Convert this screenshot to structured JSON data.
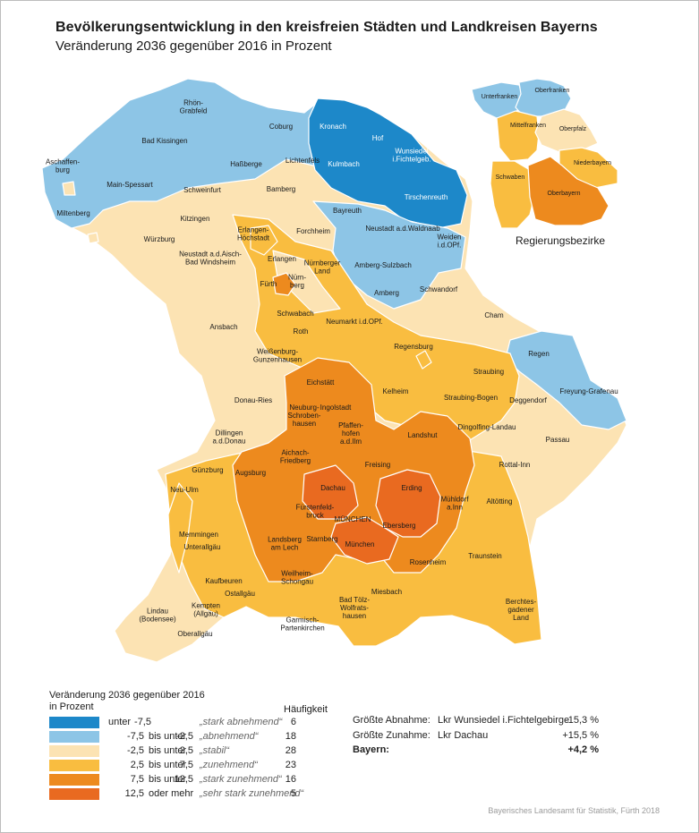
{
  "header": {
    "title": "Bevölkerungsentwicklung in den kreisfreien Städten und Landkreisen Bayerns",
    "subtitle": "Veränderung 2036 gegenüber 2016 in Prozent"
  },
  "colors": {
    "stark_abnehmend": "#1d88c9",
    "abnehmend": "#8dc5e6",
    "stabil": "#fce3b3",
    "zunehmend": "#f9bd40",
    "stark_zunehmend": "#ed8a1e",
    "sehr_stark_zunehmend": "#e96a20",
    "border": "#ffffff"
  },
  "map": {
    "labels": [
      {
        "name": "rhoen-grabfeld",
        "text": "Rhön-\nGrabfeld",
        "cls": "abnehmend"
      },
      {
        "name": "coburg",
        "text": "Coburg",
        "cls": "abnehmend"
      },
      {
        "name": "kronach",
        "text": "Kronach",
        "cls": "stark_abnehmend"
      },
      {
        "name": "hof",
        "text": "Hof",
        "cls": "stark_abnehmend"
      },
      {
        "name": "bad-kissingen",
        "text": "Bad Kissingen",
        "cls": "abnehmend"
      },
      {
        "name": "hassberge",
        "text": "Haßberge",
        "cls": "abnehmend"
      },
      {
        "name": "lichtenfels",
        "text": "Lichtenfels",
        "cls": "abnehmend"
      },
      {
        "name": "kulmbach",
        "text": "Kulmbach",
        "cls": "stark_abnehmend"
      },
      {
        "name": "wunsiedel",
        "text": "Wunsiedel\ni.Fichtelgeb.",
        "cls": "stark_abnehmend"
      },
      {
        "name": "aschaffenburg",
        "text": "Aschaffen-\nburg",
        "cls": "abnehmend"
      },
      {
        "name": "main-spessart",
        "text": "Main-Spessart",
        "cls": "abnehmend"
      },
      {
        "name": "schweinfurt",
        "text": "Schweinfurt",
        "cls": "stabil"
      },
      {
        "name": "bamberg",
        "text": "Bamberg",
        "cls": "stabil"
      },
      {
        "name": "bayreuth",
        "text": "Bayreuth",
        "cls": "abnehmend"
      },
      {
        "name": "tirschenreuth",
        "text": "Tirschenreuth",
        "cls": "stark_abnehmend"
      },
      {
        "name": "miltenberg",
        "text": "Miltenberg",
        "cls": "abnehmend"
      },
      {
        "name": "kitzingen",
        "text": "Kitzingen",
        "cls": "stabil"
      },
      {
        "name": "erlangen-hoechstadt",
        "text": "Erlangen-\nHöchstadt",
        "cls": "zunehmend"
      },
      {
        "name": "forchheim",
        "text": "Forchheim",
        "cls": "stabil"
      },
      {
        "name": "neustadt-waldnaab",
        "text": "Neustadt a.d.Waldnaab",
        "cls": "abnehmend"
      },
      {
        "name": "wuerzburg",
        "text": "Würzburg",
        "cls": "stabil"
      },
      {
        "name": "weiden",
        "text": "Weiden\ni.d.OPf.",
        "cls": "abnehmend"
      },
      {
        "name": "neustadt-aisch",
        "text": "Neustadt a.d.Aisch-\nBad Windsheim",
        "cls": "stabil"
      },
      {
        "name": "erlangen",
        "text": "Erlangen",
        "cls": "zunehmend"
      },
      {
        "name": "nuernberger-land",
        "text": "Nürnberger\nLand",
        "cls": "zunehmend"
      },
      {
        "name": "amberg-sulzbach",
        "text": "Amberg-Sulzbach",
        "cls": "abnehmend"
      },
      {
        "name": "fuerth",
        "text": "Fürth",
        "cls": "zunehmend"
      },
      {
        "name": "nuernberg",
        "text": "Nürn-\nberg",
        "cls": "stark_zunehmend"
      },
      {
        "name": "amberg",
        "text": "Amberg",
        "cls": "abnehmend"
      },
      {
        "name": "schwandorf",
        "text": "Schwandorf",
        "cls": "stabil"
      },
      {
        "name": "schwabach",
        "text": "Schwabach",
        "cls": "zunehmend"
      },
      {
        "name": "cham",
        "text": "Cham",
        "cls": "stabil"
      },
      {
        "name": "ansbach",
        "text": "Ansbach",
        "cls": "stabil"
      },
      {
        "name": "neumarkt",
        "text": "Neumarkt i.d.OPf.",
        "cls": "zunehmend"
      },
      {
        "name": "roth",
        "text": "Roth",
        "cls": "stabil"
      },
      {
        "name": "regensburg",
        "text": "Regensburg",
        "cls": "zunehmend"
      },
      {
        "name": "regen",
        "text": "Regen",
        "cls": "abnehmend"
      },
      {
        "name": "weissenburg",
        "text": "Weißenburg-\nGunzenhausen",
        "cls": "stabil"
      },
      {
        "name": "straubing",
        "text": "Straubing",
        "cls": "zunehmend"
      },
      {
        "name": "eichstaett",
        "text": "Eichstätt",
        "cls": "stark_zunehmend"
      },
      {
        "name": "kelheim",
        "text": "Kelheim",
        "cls": "zunehmend"
      },
      {
        "name": "freyung-grafenau",
        "text": "Freyung-Grafenau",
        "cls": "abnehmend"
      },
      {
        "name": "straubing-bogen",
        "text": "Straubing-Bogen",
        "cls": "zunehmend"
      },
      {
        "name": "donau-ries",
        "text": "Donau-Ries",
        "cls": "stabil"
      },
      {
        "name": "ingolstadt",
        "text": "Ingolstadt",
        "cls": "stark_zunehmend"
      },
      {
        "name": "deggendorf",
        "text": "Deggendorf",
        "cls": "stabil"
      },
      {
        "name": "neuburg-schrobenhausen",
        "text": "Neuburg-\nSchroben-\nhausen",
        "cls": "stark_zunehmend"
      },
      {
        "name": "dingolfing-landau",
        "text": "Dingolfing-Landau",
        "cls": "zunehmend"
      },
      {
        "name": "pfaffenhofen",
        "text": "Pfaffen-\nhofen\na.d.Ilm",
        "cls": "stark_zunehmend"
      },
      {
        "name": "landshut",
        "text": "Landshut",
        "cls": "stark_zunehmend"
      },
      {
        "name": "dillingen",
        "text": "Dillingen\na.d.Donau",
        "cls": "stabil"
      },
      {
        "name": "passau",
        "text": "Passau",
        "cls": "stabil"
      },
      {
        "name": "aichach-friedberg",
        "text": "Aichach-\nFriedberg",
        "cls": "zunehmend"
      },
      {
        "name": "freising",
        "text": "Freising",
        "cls": "stark_zunehmend"
      },
      {
        "name": "guenzburg",
        "text": "Günzburg",
        "cls": "stabil"
      },
      {
        "name": "augsburg",
        "text": "Augsburg",
        "cls": "stark_zunehmend"
      },
      {
        "name": "rottal-inn",
        "text": "Rottal-Inn",
        "cls": "stabil"
      },
      {
        "name": "dachau",
        "text": "Dachau",
        "cls": "sehr_stark_zunehmend"
      },
      {
        "name": "erding",
        "text": "Erding",
        "cls": "sehr_stark_zunehmend"
      },
      {
        "name": "neu-ulm",
        "text": "Neu-Ulm",
        "cls": "zunehmend"
      },
      {
        "name": "muehldorf",
        "text": "Mühldorf\na.Inn",
        "cls": "stark_zunehmend"
      },
      {
        "name": "altoetting",
        "text": "Altötting",
        "cls": "stabil"
      },
      {
        "name": "fuerstenfeldbruck",
        "text": "Fürstenfeld-\nbruck",
        "cls": "stark_zunehmend"
      },
      {
        "name": "muenchen-stadt",
        "text": "MÜNCHEN",
        "cls": "sehr_stark_zunehmend"
      },
      {
        "name": "ebersberg",
        "text": "Ebersberg",
        "cls": "sehr_stark_zunehmend"
      },
      {
        "name": "memmingen",
        "text": "Memmingen",
        "cls": "zunehmend"
      },
      {
        "name": "unterallgaeu",
        "text": "Unterallgäu",
        "cls": "zunehmend"
      },
      {
        "name": "landsberg",
        "text": "Landsberg\nam Lech",
        "cls": "stark_zunehmend"
      },
      {
        "name": "starnberg",
        "text": "Starnberg",
        "cls": "stark_zunehmend"
      },
      {
        "name": "muenchen-lkr",
        "text": "München",
        "cls": "sehr_stark_zunehmend"
      },
      {
        "name": "traunstein",
        "text": "Traunstein",
        "cls": "zunehmend"
      },
      {
        "name": "rosenheim",
        "text": "Rosenheim",
        "cls": "stark_zunehmend"
      },
      {
        "name": "kaufbeuren",
        "text": "Kaufbeuren",
        "cls": "zunehmend"
      },
      {
        "name": "weilheim-schongau",
        "text": "Weilheim-\nSchongau",
        "cls": "zunehmend"
      },
      {
        "name": "ostallgaeu",
        "text": "Ostallgäu",
        "cls": "zunehmend"
      },
      {
        "name": "miesbach",
        "text": "Miesbach",
        "cls": "zunehmend"
      },
      {
        "name": "kempten",
        "text": "Kempten\n(Allgäu)",
        "cls": "stabil"
      },
      {
        "name": "bad-toelz",
        "text": "Bad Tölz-\nWolfrats-\nhausen",
        "cls": "zunehmend"
      },
      {
        "name": "berchtesgaden",
        "text": "Berchtes-\ngadener\nLand",
        "cls": "zunehmend"
      },
      {
        "name": "lindau",
        "text": "Lindau\n(Bodensee)",
        "cls": "stabil"
      },
      {
        "name": "oberallgaeu",
        "text": "Oberallgäu",
        "cls": "stabil"
      },
      {
        "name": "garmisch",
        "text": "Garmisch-\nPartenkirchen",
        "cls": "zunehmend"
      }
    ]
  },
  "regierungsbezirke": {
    "title": "Regierungsbezirke",
    "items": [
      {
        "name": "unterfranken",
        "text": "Unterfranken",
        "cls": "abnehmend"
      },
      {
        "name": "oberfranken",
        "text": "Oberfranken",
        "cls": "abnehmend"
      },
      {
        "name": "mittelfranken",
        "text": "Mittelfranken",
        "cls": "zunehmend"
      },
      {
        "name": "oberpfalz",
        "text": "Oberpfalz",
        "cls": "stabil"
      },
      {
        "name": "niederbayern",
        "text": "Niederbayern",
        "cls": "zunehmend"
      },
      {
        "name": "schwaben",
        "text": "Schwaben",
        "cls": "zunehmend"
      },
      {
        "name": "oberbayern",
        "text": "Oberbayern",
        "cls": "stark_zunehmend"
      }
    ]
  },
  "legend": {
    "heading": "Veränderung 2036 gegenüber 2016\nin Prozent",
    "frequency_heading": "Häufigkeit",
    "rows": [
      {
        "cls": "stark_abnehmend",
        "from": "",
        "sep": "unter",
        "to": "-7,5",
        "desc": "„stark abnehmend“",
        "count": "6"
      },
      {
        "cls": "abnehmend",
        "from": "-7,5",
        "sep": "bis unter",
        "to": "-2,5",
        "desc": "„abnehmend“",
        "count": "18"
      },
      {
        "cls": "stabil",
        "from": "-2,5",
        "sep": "bis unter",
        "to": "2,5",
        "desc": "„stabil“",
        "count": "28"
      },
      {
        "cls": "zunehmend",
        "from": "2,5",
        "sep": "bis unter",
        "to": "7,5",
        "desc": "„zunehmend“",
        "count": "23"
      },
      {
        "cls": "stark_zunehmend",
        "from": "7,5",
        "sep": "bis unter",
        "to": "12,5",
        "desc": "„stark zunehmend“",
        "count": "16"
      },
      {
        "cls": "sehr_stark_zunehmend",
        "from": "12,5",
        "sep": "oder mehr",
        "to": "",
        "desc": "„sehr stark zunehmend“",
        "count": "5"
      }
    ]
  },
  "stats": {
    "max_decrease": {
      "label": "Größte Abnahme:",
      "value": "Lkr Wunsiedel i.Fichtelgebirge",
      "pct": "-15,3 %"
    },
    "max_increase": {
      "label": "Größte Zunahme:",
      "value": "Lkr Dachau",
      "pct": "+15,5 %"
    },
    "bayern": {
      "label": "Bayern:",
      "pct": "+4,2 %"
    }
  },
  "footer": {
    "source": "Bayerisches Landesamt für Statistik, Fürth 2018"
  }
}
